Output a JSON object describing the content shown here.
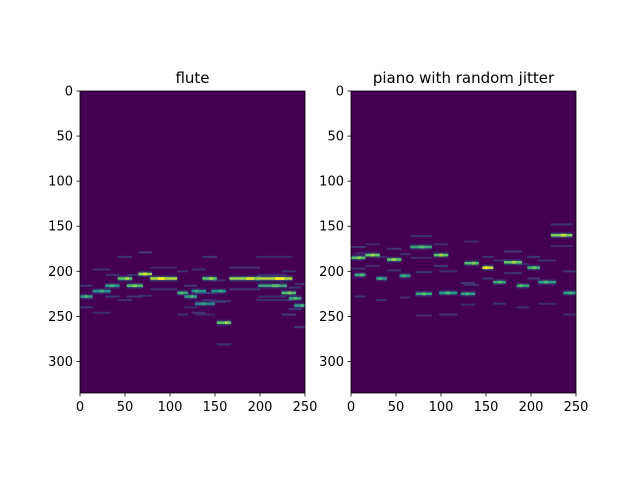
{
  "chart_data": [
    {
      "type": "heatmap",
      "title": "flute",
      "xlabel": "",
      "ylabel": "",
      "xlim": [
        0,
        250
      ],
      "ylim": [
        335,
        0
      ],
      "x_ticks": [
        "0",
        "50",
        "100",
        "150",
        "200",
        "250"
      ],
      "y_ticks": [
        "0",
        "50",
        "100",
        "150",
        "200",
        "250",
        "300"
      ],
      "grid": false,
      "colormap": "viridis",
      "background_color": "#440154",
      "notes": [
        {
          "x_start": 0,
          "x_end": 14,
          "pitch": 228,
          "intensity": 0.55
        },
        {
          "x_start": 14,
          "x_end": 34,
          "pitch": 222,
          "intensity": 0.5
        },
        {
          "x_start": 28,
          "x_end": 44,
          "pitch": 216,
          "intensity": 0.55
        },
        {
          "x_start": 42,
          "x_end": 58,
          "pitch": 208,
          "intensity": 0.75
        },
        {
          "x_start": 52,
          "x_end": 70,
          "pitch": 216,
          "intensity": 0.7
        },
        {
          "x_start": 65,
          "x_end": 80,
          "pitch": 203,
          "intensity": 0.85
        },
        {
          "x_start": 78,
          "x_end": 108,
          "pitch": 208,
          "intensity": 0.9
        },
        {
          "x_start": 108,
          "x_end": 120,
          "pitch": 224,
          "intensity": 0.6
        },
        {
          "x_start": 116,
          "x_end": 130,
          "pitch": 228,
          "intensity": 0.55
        },
        {
          "x_start": 124,
          "x_end": 140,
          "pitch": 222,
          "intensity": 0.5
        },
        {
          "x_start": 128,
          "x_end": 150,
          "pitch": 236,
          "intensity": 0.45
        },
        {
          "x_start": 136,
          "x_end": 152,
          "pitch": 208,
          "intensity": 0.75
        },
        {
          "x_start": 146,
          "x_end": 162,
          "pitch": 222,
          "intensity": 0.5
        },
        {
          "x_start": 152,
          "x_end": 168,
          "pitch": 257,
          "intensity": 0.75
        },
        {
          "x_start": 166,
          "x_end": 200,
          "pitch": 208,
          "intensity": 0.85
        },
        {
          "x_start": 196,
          "x_end": 236,
          "pitch": 208,
          "intensity": 0.9
        },
        {
          "x_start": 198,
          "x_end": 230,
          "pitch": 216,
          "intensity": 0.6
        },
        {
          "x_start": 224,
          "x_end": 240,
          "pitch": 224,
          "intensity": 0.7
        },
        {
          "x_start": 232,
          "x_end": 246,
          "pitch": 230,
          "intensity": 0.6
        },
        {
          "x_start": 238,
          "x_end": 250,
          "pitch": 238,
          "intensity": 0.55
        }
      ]
    },
    {
      "type": "heatmap",
      "title": "piano with random jitter",
      "xlabel": "",
      "ylabel": "",
      "xlim": [
        0,
        250
      ],
      "ylim": [
        335,
        0
      ],
      "x_ticks": [
        "0",
        "50",
        "100",
        "150",
        "200",
        "250"
      ],
      "y_ticks": [
        "0",
        "50",
        "100",
        "150",
        "200",
        "250",
        "300"
      ],
      "grid": false,
      "colormap": "viridis",
      "background_color": "#440154",
      "notes": [
        {
          "x_start": 0,
          "x_end": 16,
          "pitch": 185,
          "intensity": 0.7
        },
        {
          "x_start": 4,
          "x_end": 16,
          "pitch": 204,
          "intensity": 0.6
        },
        {
          "x_start": 16,
          "x_end": 32,
          "pitch": 182,
          "intensity": 0.75
        },
        {
          "x_start": 28,
          "x_end": 40,
          "pitch": 208,
          "intensity": 0.55
        },
        {
          "x_start": 40,
          "x_end": 56,
          "pitch": 187,
          "intensity": 0.75
        },
        {
          "x_start": 54,
          "x_end": 66,
          "pitch": 205,
          "intensity": 0.55
        },
        {
          "x_start": 66,
          "x_end": 90,
          "pitch": 173,
          "intensity": 0.6
        },
        {
          "x_start": 72,
          "x_end": 90,
          "pitch": 225,
          "intensity": 0.6
        },
        {
          "x_start": 92,
          "x_end": 108,
          "pitch": 182,
          "intensity": 0.75
        },
        {
          "x_start": 98,
          "x_end": 118,
          "pitch": 224,
          "intensity": 0.55
        },
        {
          "x_start": 122,
          "x_end": 138,
          "pitch": 225,
          "intensity": 0.55
        },
        {
          "x_start": 126,
          "x_end": 142,
          "pitch": 191,
          "intensity": 0.7
        },
        {
          "x_start": 146,
          "x_end": 158,
          "pitch": 196,
          "intensity": 0.95
        },
        {
          "x_start": 158,
          "x_end": 172,
          "pitch": 212,
          "intensity": 0.6
        },
        {
          "x_start": 170,
          "x_end": 190,
          "pitch": 190,
          "intensity": 0.75
        },
        {
          "x_start": 184,
          "x_end": 198,
          "pitch": 216,
          "intensity": 0.6
        },
        {
          "x_start": 196,
          "x_end": 210,
          "pitch": 196,
          "intensity": 0.65
        },
        {
          "x_start": 208,
          "x_end": 228,
          "pitch": 212,
          "intensity": 0.55
        },
        {
          "x_start": 222,
          "x_end": 246,
          "pitch": 160,
          "intensity": 0.8
        },
        {
          "x_start": 236,
          "x_end": 250,
          "pitch": 224,
          "intensity": 0.55
        }
      ]
    }
  ]
}
